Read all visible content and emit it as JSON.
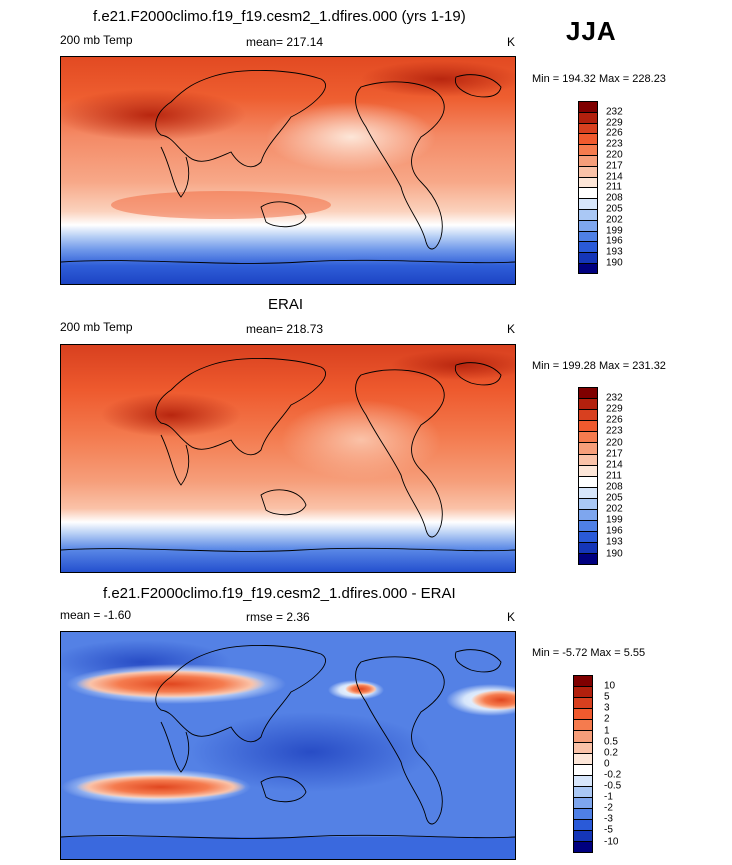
{
  "season": "JJA",
  "panels": [
    {
      "title": "f.e21.F2000climo.f19_f19.cesm2_1.dfires.000 (yrs 1-19)",
      "left_label": "200 mb Temp",
      "center_label": "mean= 217.14",
      "right_label": "K",
      "minmax": "Min = 194.32 Max = 228.23",
      "kind": "abs"
    },
    {
      "title": "ERAI",
      "left_label": "200 mb Temp",
      "center_label": "mean= 218.73",
      "right_label": "K",
      "minmax": "Min = 199.28 Max = 231.32",
      "kind": "abs"
    },
    {
      "title": "f.e21.F2000climo.f19_f19.cesm2_1.dfires.000 - ERAI",
      "left_label": "mean =  -1.60",
      "center_label": "rmse =   2.36",
      "right_label": "K",
      "minmax": "Min =  -5.72 Max =   5.55",
      "kind": "diff"
    }
  ],
  "colorbars": {
    "abs": {
      "labels": [
        "232",
        "229",
        "226",
        "223",
        "220",
        "217",
        "214",
        "211",
        "208",
        "205",
        "202",
        "199",
        "196",
        "193",
        "190"
      ],
      "colors": [
        "#7f0000",
        "#b2200d",
        "#d8401f",
        "#f05a2e",
        "#f57b4e",
        "#f69e7a",
        "#fac2a8",
        "#fde6d8",
        "#ffffff",
        "#d7e6fb",
        "#aac8f5",
        "#7ea6ee",
        "#4f80e6",
        "#2a5ad8",
        "#1536b8",
        "#00007f"
      ]
    },
    "diff": {
      "labels": [
        "10",
        "5",
        "3",
        "2",
        "1",
        "0.5",
        "0.2",
        "0",
        "-0.2",
        "-0.5",
        "-1",
        "-2",
        "-3",
        "-5",
        "-10"
      ],
      "colors": [
        "#7f0000",
        "#b2200d",
        "#d8401f",
        "#f05a2e",
        "#f57b4e",
        "#f69e7a",
        "#fac2a8",
        "#fde6d8",
        "#ffffff",
        "#d7e6fb",
        "#aac8f5",
        "#7ea6ee",
        "#4f80e6",
        "#2a5ad8",
        "#1536b8",
        "#00007f"
      ]
    }
  }
}
